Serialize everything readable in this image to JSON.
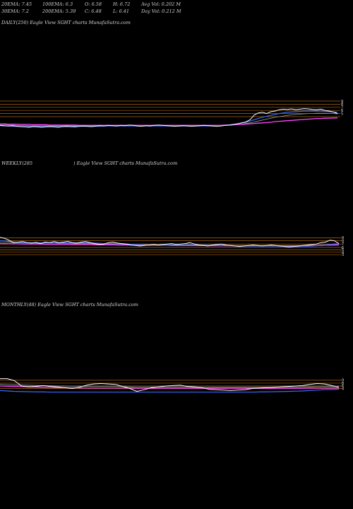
{
  "header": {
    "ema20": "20EMA: 7.45",
    "ema30": "30EMA: 7.2",
    "ema100": "100EMA: 6.3",
    "ema200": "200EMA: 5.39",
    "open": "O: 6.58",
    "close": "C: 6.48",
    "high": "H: 6.72",
    "low": "L: 6.41",
    "avg_vol": "Avg Vol: 0.202  M",
    "day_vol": "Day Vol: 0.212  M"
  },
  "panels": {
    "daily": {
      "title_left": "DAILY(250) Eagle   View  SGHT charts MunafaSutra.com"
    },
    "weekly": {
      "title_left": "WEEKLY(285",
      "title_right": ") Eagle   View  SGHT charts MunafaSutra.com"
    },
    "monthly": {
      "title_left": "MONTHLY(48) Eagle   View  SGHT charts MunafaSutra.com"
    }
  },
  "colors": {
    "price": "#ffffff",
    "blue_ma": "#3a6cff",
    "magenta_ma": "#ff44ff",
    "orange_levels": "#c87a1e",
    "gray_ma": "#9a9a9a"
  },
  "chart_data": [
    {
      "name": "daily",
      "type": "line",
      "ylim": [
        0,
        100
      ],
      "levels": [
        100,
        90,
        80,
        70,
        60,
        50
      ],
      "axis_labels": [
        "9",
        "8",
        "7",
        "6",
        "5"
      ],
      "price": [
        22,
        21,
        20,
        21,
        19,
        18,
        17,
        16,
        18,
        17,
        16,
        17,
        18,
        17,
        16,
        18,
        19,
        18,
        17,
        19,
        20,
        19,
        18,
        20,
        21,
        20,
        22,
        21,
        20,
        22,
        21,
        23,
        22,
        20,
        19,
        21,
        20,
        22,
        23,
        22,
        21,
        20,
        19,
        20,
        21,
        20,
        19,
        20,
        21,
        22,
        21,
        20,
        19,
        20,
        22,
        23,
        25,
        27,
        30,
        33,
        40,
        55,
        62,
        64,
        60,
        66,
        68,
        72,
        74,
        73,
        75,
        72,
        74,
        76,
        75,
        73,
        72,
        74,
        70,
        68,
        65,
        60
      ],
      "ma_blue": [
        21,
        20,
        20,
        19,
        19,
        18,
        18,
        18,
        18,
        18,
        18,
        18,
        18,
        18,
        18,
        18,
        18,
        18,
        19,
        19,
        19,
        19,
        19,
        19,
        19,
        20,
        20,
        20,
        20,
        20,
        20,
        20,
        20,
        20,
        20,
        20,
        20,
        20,
        20,
        20,
        20,
        20,
        20,
        20,
        20,
        20,
        20,
        20,
        20,
        20,
        20,
        20,
        21,
        21,
        22,
        23,
        25,
        27,
        29,
        32,
        36,
        40,
        44,
        48,
        51,
        54,
        57,
        60,
        62,
        64,
        65,
        66,
        67,
        68,
        68,
        68,
        68,
        68,
        67,
        66,
        65,
        64
      ],
      "ma_magenta": [
        27,
        27,
        26,
        26,
        26,
        25,
        25,
        25,
        24,
        24,
        24,
        24,
        23,
        23,
        23,
        23,
        23,
        23,
        23,
        22,
        22,
        22,
        22,
        22,
        22,
        22,
        22,
        22,
        22,
        22,
        22,
        22,
        22,
        22,
        22,
        22,
        22,
        22,
        22,
        22,
        22,
        22,
        22,
        22,
        22,
        22,
        22,
        22,
        22,
        22,
        22,
        22,
        22,
        22,
        23,
        23,
        24,
        24,
        25,
        26,
        27,
        28,
        29,
        30,
        31,
        32,
        34,
        35,
        36,
        37,
        38,
        39,
        40,
        41,
        42,
        43,
        44,
        44,
        45,
        45,
        46,
        46
      ],
      "ma_gray": [
        24,
        24,
        23,
        23,
        22,
        22,
        22,
        21,
        21,
        21,
        21,
        21,
        21,
        21,
        21,
        21,
        21,
        21,
        21,
        21,
        21,
        21,
        21,
        21,
        21,
        21,
        21,
        21,
        21,
        21,
        21,
        21,
        21,
        21,
        21,
        21,
        21,
        21,
        21,
        21,
        21,
        21,
        21,
        21,
        21,
        21,
        21,
        21,
        21,
        21,
        21,
        21,
        21,
        21,
        22,
        22,
        23,
        24,
        26,
        28,
        30,
        33,
        36,
        39,
        42,
        45,
        48,
        50,
        52,
        54,
        56,
        57,
        58,
        59,
        60,
        60,
        61,
        61,
        61,
        60,
        60,
        59
      ]
    },
    {
      "name": "weekly",
      "type": "line",
      "ylim": [
        0,
        100
      ],
      "levels": [
        90,
        78,
        64,
        50,
        40,
        30,
        20
      ],
      "axis_labels": [
        "9",
        "8",
        "7",
        "6",
        "5",
        "4",
        "3"
      ],
      "price": [
        92,
        88,
        80,
        70,
        72,
        74,
        70,
        68,
        71,
        66,
        72,
        70,
        74,
        70,
        72,
        75,
        70,
        68,
        72,
        74,
        70,
        66,
        62,
        64,
        70,
        72,
        68,
        66,
        64,
        60,
        58,
        56,
        58,
        60,
        62,
        60,
        62,
        64,
        66,
        62,
        64,
        66,
        70,
        64,
        60,
        58,
        56,
        60,
        62,
        64,
        60,
        58,
        56,
        54,
        56,
        58,
        60,
        58,
        56,
        58,
        60,
        58,
        56,
        54,
        52,
        54,
        56,
        58,
        60,
        62,
        64,
        70,
        72,
        80,
        78,
        66
      ],
      "ma_blue": [
        78,
        77,
        75,
        73,
        71,
        70,
        69,
        69,
        69,
        69,
        69,
        69,
        69,
        69,
        69,
        69,
        69,
        69,
        69,
        69,
        68,
        68,
        67,
        66,
        66,
        66,
        65,
        65,
        64,
        63,
        62,
        61,
        60,
        60,
        60,
        60,
        60,
        60,
        60,
        60,
        60,
        60,
        61,
        61,
        60,
        60,
        59,
        59,
        59,
        59,
        58,
        58,
        57,
        57,
        56,
        56,
        56,
        56,
        56,
        56,
        56,
        56,
        55,
        55,
        54,
        54,
        54,
        55,
        55,
        56,
        57,
        58,
        60,
        62,
        64,
        65
      ],
      "ma_magenta": [
        66,
        66,
        65,
        65,
        65,
        64,
        64,
        64,
        64,
        64,
        63,
        63,
        63,
        63,
        63,
        63,
        62,
        62,
        62,
        62,
        62,
        61,
        61,
        61,
        61,
        61,
        60,
        60,
        60,
        60,
        60,
        59,
        59,
        59,
        59,
        59,
        59,
        59,
        58,
        58,
        58,
        58,
        58,
        58,
        58,
        58,
        58,
        57,
        57,
        57,
        57,
        57,
        57,
        57,
        57,
        57,
        57,
        57,
        57,
        57,
        57,
        57,
        57,
        57,
        57,
        57,
        57,
        57,
        57,
        58,
        58,
        58,
        59,
        59,
        60,
        60
      ],
      "ma_gray": [
        72,
        71,
        71,
        70,
        70,
        69,
        69,
        69,
        68,
        68,
        68,
        68,
        68,
        67,
        67,
        67,
        67,
        66,
        66,
        66,
        66,
        65,
        65,
        65,
        64,
        64,
        64,
        63,
        63,
        63,
        62,
        62,
        62,
        61,
        61,
        61,
        61,
        61,
        61,
        61,
        60,
        60,
        60,
        60,
        60,
        60,
        60,
        59,
        59,
        59,
        59,
        59,
        58,
        58,
        58,
        58,
        58,
        58,
        58,
        58,
        58,
        57,
        57,
        57,
        57,
        57,
        57,
        57,
        58,
        58,
        59,
        60,
        61,
        62,
        63,
        64
      ]
    },
    {
      "name": "monthly",
      "type": "line",
      "ylim": [
        0,
        100
      ],
      "levels": [
        90,
        76,
        62,
        50
      ],
      "axis_labels": [
        "9",
        "8",
        "6",
        "4"
      ],
      "price": [
        98,
        98,
        88,
        62,
        58,
        60,
        64,
        60,
        58,
        54,
        50,
        56,
        66,
        72,
        74,
        72,
        70,
        60,
        50,
        36,
        44,
        54,
        58,
        62,
        64,
        66,
        60,
        58,
        54,
        46,
        44,
        42,
        40,
        42,
        44,
        50,
        52,
        54,
        56,
        58,
        60,
        62,
        64,
        70,
        74,
        72,
        64,
        56
      ],
      "ma_blue": [
        40,
        38,
        36,
        35,
        34,
        33,
        33,
        32,
        32,
        32,
        32,
        32,
        32,
        32,
        32,
        32,
        32,
        32,
        32,
        32,
        32,
        32,
        32,
        32,
        32,
        32,
        32,
        32,
        32,
        32,
        32,
        32,
        32,
        32,
        32,
        32,
        33,
        33,
        34,
        35,
        36,
        37,
        38,
        40,
        42,
        44,
        45,
        46
      ],
      "ma_magenta": [
        62,
        61,
        60,
        59,
        58,
        57,
        56,
        55,
        54,
        54,
        53,
        53,
        52,
        52,
        52,
        52,
        52,
        52,
        52,
        51,
        51,
        51,
        51,
        51,
        51,
        51,
        51,
        51,
        51,
        51,
        51,
        51,
        51,
        51,
        51,
        51,
        51,
        51,
        51,
        51,
        51,
        51,
        51,
        52,
        52,
        52,
        52,
        52
      ],
      "ma_gray": [
        70,
        69,
        68,
        67,
        66,
        65,
        64,
        63,
        62,
        62,
        61,
        61,
        60,
        60,
        60,
        60,
        60,
        59,
        58,
        57,
        57,
        57,
        57,
        57,
        57,
        57,
        57,
        56,
        56,
        56,
        56,
        56,
        56,
        56,
        56,
        56,
        56,
        56,
        56,
        57,
        57,
        57,
        58,
        58,
        59,
        59,
        59,
        59
      ]
    }
  ]
}
